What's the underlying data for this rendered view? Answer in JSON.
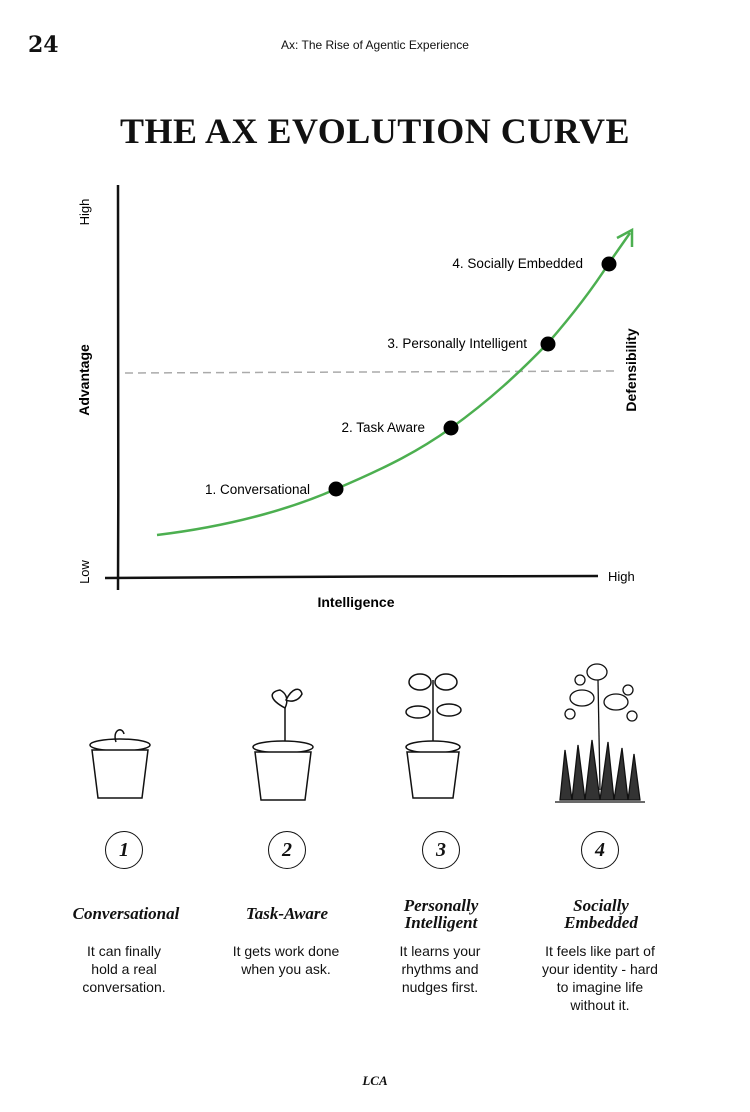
{
  "header": {
    "page_number": "24",
    "running_title": "Ax: The Rise of Agentic Experience"
  },
  "title": "THE AX EVOLUTION CURVE",
  "chart": {
    "y_axis_label": "Advantage",
    "y_low": "Low",
    "y_high": "High",
    "x_axis_label": "Intelligence",
    "x_high": "High",
    "threshold_label": "Defensibility",
    "curve_color": "#4caf50",
    "points": [
      {
        "label": "1. Conversational"
      },
      {
        "label": "2. Task Aware"
      },
      {
        "label": "3. Personally Intelligent"
      },
      {
        "label": "4. Socially Embedded"
      }
    ]
  },
  "stages": [
    {
      "number": "1",
      "title_lines": [
        "Conversational",
        ""
      ],
      "desc_lines": [
        "It can finally",
        "hold a real",
        "conversation.",
        ""
      ]
    },
    {
      "number": "2",
      "title_lines": [
        "Task-Aware",
        ""
      ],
      "desc_lines": [
        "It gets work done",
        "when you ask.",
        "",
        ""
      ]
    },
    {
      "number": "3",
      "title_lines": [
        "Personally",
        "Intelligent"
      ],
      "desc_lines": [
        "It learns your",
        "rhythms and",
        "nudges first.",
        ""
      ]
    },
    {
      "number": "4",
      "title_lines": [
        "Socially",
        "Embedded"
      ],
      "desc_lines": [
        "It feels like part of",
        "your identity - hard",
        "to imagine life",
        "without it."
      ]
    }
  ],
  "footer": "LCA"
}
